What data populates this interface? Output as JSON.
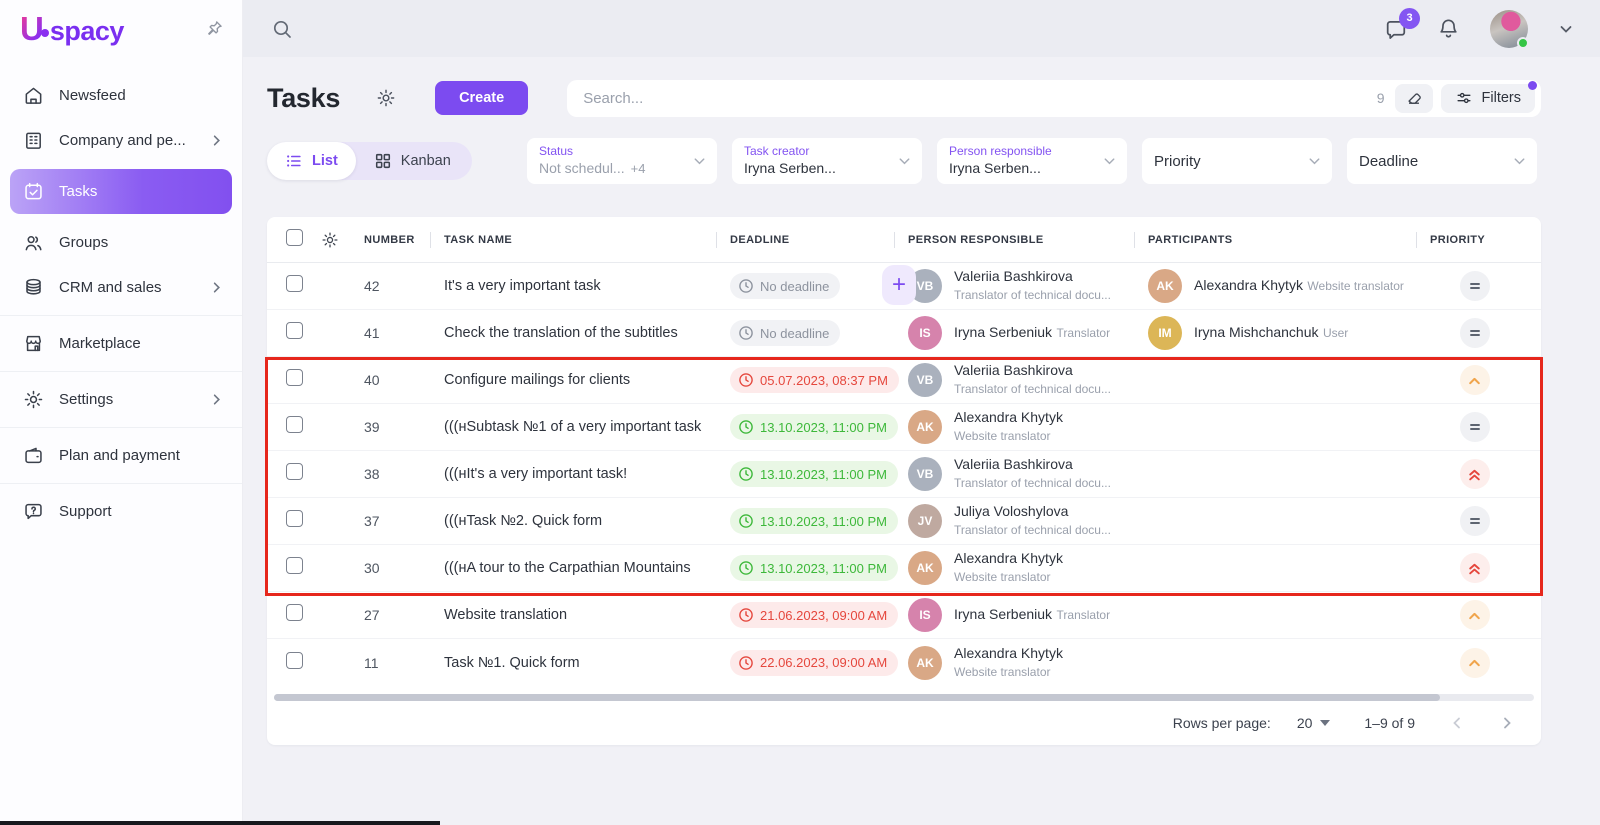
{
  "app": {
    "logo_letter": "U",
    "logo_text": "spacy"
  },
  "topbar": {
    "chat_badge": "3"
  },
  "sidebar": {
    "items": [
      {
        "label": "Newsfeed",
        "icon": "home-icon",
        "chevron": false,
        "active": false,
        "divider": false
      },
      {
        "label": "Company and pe...",
        "icon": "building-icon",
        "chevron": true,
        "active": false,
        "divider": false
      },
      {
        "label": "Tasks",
        "icon": "calendar-check-icon",
        "chevron": false,
        "active": true,
        "divider": false
      },
      {
        "label": "Groups",
        "icon": "people-icon",
        "chevron": false,
        "active": false,
        "divider": false
      },
      {
        "label": "CRM and sales",
        "icon": "database-icon",
        "chevron": true,
        "active": false,
        "divider": false
      },
      {
        "label": "Marketplace",
        "icon": "store-icon",
        "chevron": false,
        "active": false,
        "divider": true
      },
      {
        "label": "Settings",
        "icon": "gear-icon",
        "chevron": true,
        "active": false,
        "divider": true
      },
      {
        "label": "Plan and payment",
        "icon": "wallet-icon",
        "chevron": false,
        "active": false,
        "divider": true
      },
      {
        "label": "Support",
        "icon": "help-bubble-icon",
        "chevron": false,
        "active": false,
        "divider": true
      }
    ]
  },
  "header": {
    "title": "Tasks",
    "create_label": "Create",
    "search_placeholder": "Search...",
    "search_count": "9",
    "filters_label": "Filters"
  },
  "tabs": [
    {
      "label": "List",
      "active": true
    },
    {
      "label": "Kanban",
      "active": false
    }
  ],
  "filter_chips": [
    {
      "label": "Status",
      "value": "Not schedul...",
      "extra": "+4",
      "muted": true,
      "compact": false
    },
    {
      "label": "Task creator",
      "value": "Iryna Serben...",
      "extra": "",
      "muted": false,
      "compact": false
    },
    {
      "label": "Person responsible",
      "value": "Iryna Serben...",
      "extra": "",
      "muted": false,
      "compact": false
    },
    {
      "label": "Priority",
      "value": "",
      "extra": "",
      "muted": false,
      "compact": true
    },
    {
      "label": "Deadline",
      "value": "",
      "extra": "",
      "muted": false,
      "compact": true
    }
  ],
  "table": {
    "columns": [
      "NUMBER",
      "TASK NAME",
      "DEADLINE",
      "PERSON RESPONSIBLE",
      "PARTICIPANTS",
      "PRIORITY"
    ],
    "rows": [
      {
        "number": "42",
        "name": "It's a very important task",
        "deadline": {
          "text": "No deadline",
          "type": "none"
        },
        "add_button": true,
        "responsible": {
          "name": "Valeriia Bashkirova",
          "role": "Translator of technical docu...",
          "avatar_color": "#aab1bd"
        },
        "participant": {
          "name": "Alexandra Khytyk",
          "role": "Website translator",
          "avatar_color": "#d9a886"
        },
        "priority": "medium",
        "highlighted": false
      },
      {
        "number": "41",
        "name": "Check the translation of the subtitles",
        "deadline": {
          "text": "No deadline",
          "type": "none"
        },
        "add_button": false,
        "responsible": {
          "name": "Iryna Serbeniuk",
          "role": "Translator",
          "avatar_color": "#d683ac"
        },
        "participant": {
          "name": "Iryna Mishchanchuk",
          "role": "User",
          "avatar_color": "#dcb657"
        },
        "priority": "medium",
        "highlighted": false
      },
      {
        "number": "40",
        "name": "Configure mailings for clients",
        "deadline": {
          "text": "05.07.2023, 08:37 PM",
          "type": "red"
        },
        "add_button": false,
        "responsible": {
          "name": "Valeriia Bashkirova",
          "role": "Translator of technical docu...",
          "avatar_color": "#aab1bd"
        },
        "participant": null,
        "priority": "high",
        "highlighted": true
      },
      {
        "number": "39",
        "name": "(((нSubtask №1 of a very important task",
        "deadline": {
          "text": "13.10.2023, 11:00 PM",
          "type": "green"
        },
        "add_button": false,
        "responsible": {
          "name": "Alexandra Khytyk",
          "role": "Website translator",
          "avatar_color": "#d9a886"
        },
        "participant": null,
        "priority": "medium",
        "highlighted": true
      },
      {
        "number": "38",
        "name": "(((нIt's a very important task!",
        "deadline": {
          "text": "13.10.2023, 11:00 PM",
          "type": "green"
        },
        "add_button": false,
        "responsible": {
          "name": "Valeriia Bashkirova",
          "role": "Translator of technical docu...",
          "avatar_color": "#aab1bd"
        },
        "participant": null,
        "priority": "highest",
        "highlighted": true
      },
      {
        "number": "37",
        "name": "(((нTask №2. Quick form",
        "deadline": {
          "text": "13.10.2023, 11:00 PM",
          "type": "green"
        },
        "add_button": false,
        "responsible": {
          "name": "Juliya Voloshylova",
          "role": "Translator of technical docu...",
          "avatar_color": "#bfa9a0"
        },
        "participant": null,
        "priority": "medium",
        "highlighted": true
      },
      {
        "number": "30",
        "name": "(((нA tour to the Carpathian Mountains",
        "deadline": {
          "text": "13.10.2023, 11:00 PM",
          "type": "green"
        },
        "add_button": false,
        "responsible": {
          "name": "Alexandra Khytyk",
          "role": "Website translator",
          "avatar_color": "#d9a886"
        },
        "participant": null,
        "priority": "highest",
        "highlighted": true
      },
      {
        "number": "27",
        "name": "Website translation",
        "deadline": {
          "text": "21.06.2023, 09:00 AM",
          "type": "red"
        },
        "add_button": false,
        "responsible": {
          "name": "Iryna Serbeniuk",
          "role": "Translator",
          "avatar_color": "#d683ac"
        },
        "participant": null,
        "priority": "high",
        "highlighted": false
      },
      {
        "number": "11",
        "name": "Task №1. Quick form",
        "deadline": {
          "text": "22.06.2023, 09:00 AM",
          "type": "red"
        },
        "add_button": false,
        "responsible": {
          "name": "Alexandra Khytyk",
          "role": "Website translator",
          "avatar_color": "#d9a886"
        },
        "participant": null,
        "priority": "high",
        "highlighted": false
      }
    ]
  },
  "footer": {
    "rows_per_page_label": "Rows per page:",
    "rows_per_page": "20",
    "range": "1–9 of 9"
  },
  "colors": {
    "accent_purple": "#7c4bf0",
    "highlight_red": "#e6271c",
    "deadline_overdue": "#e5473d",
    "deadline_ok": "#3db83a",
    "online_green": "#35c545"
  }
}
